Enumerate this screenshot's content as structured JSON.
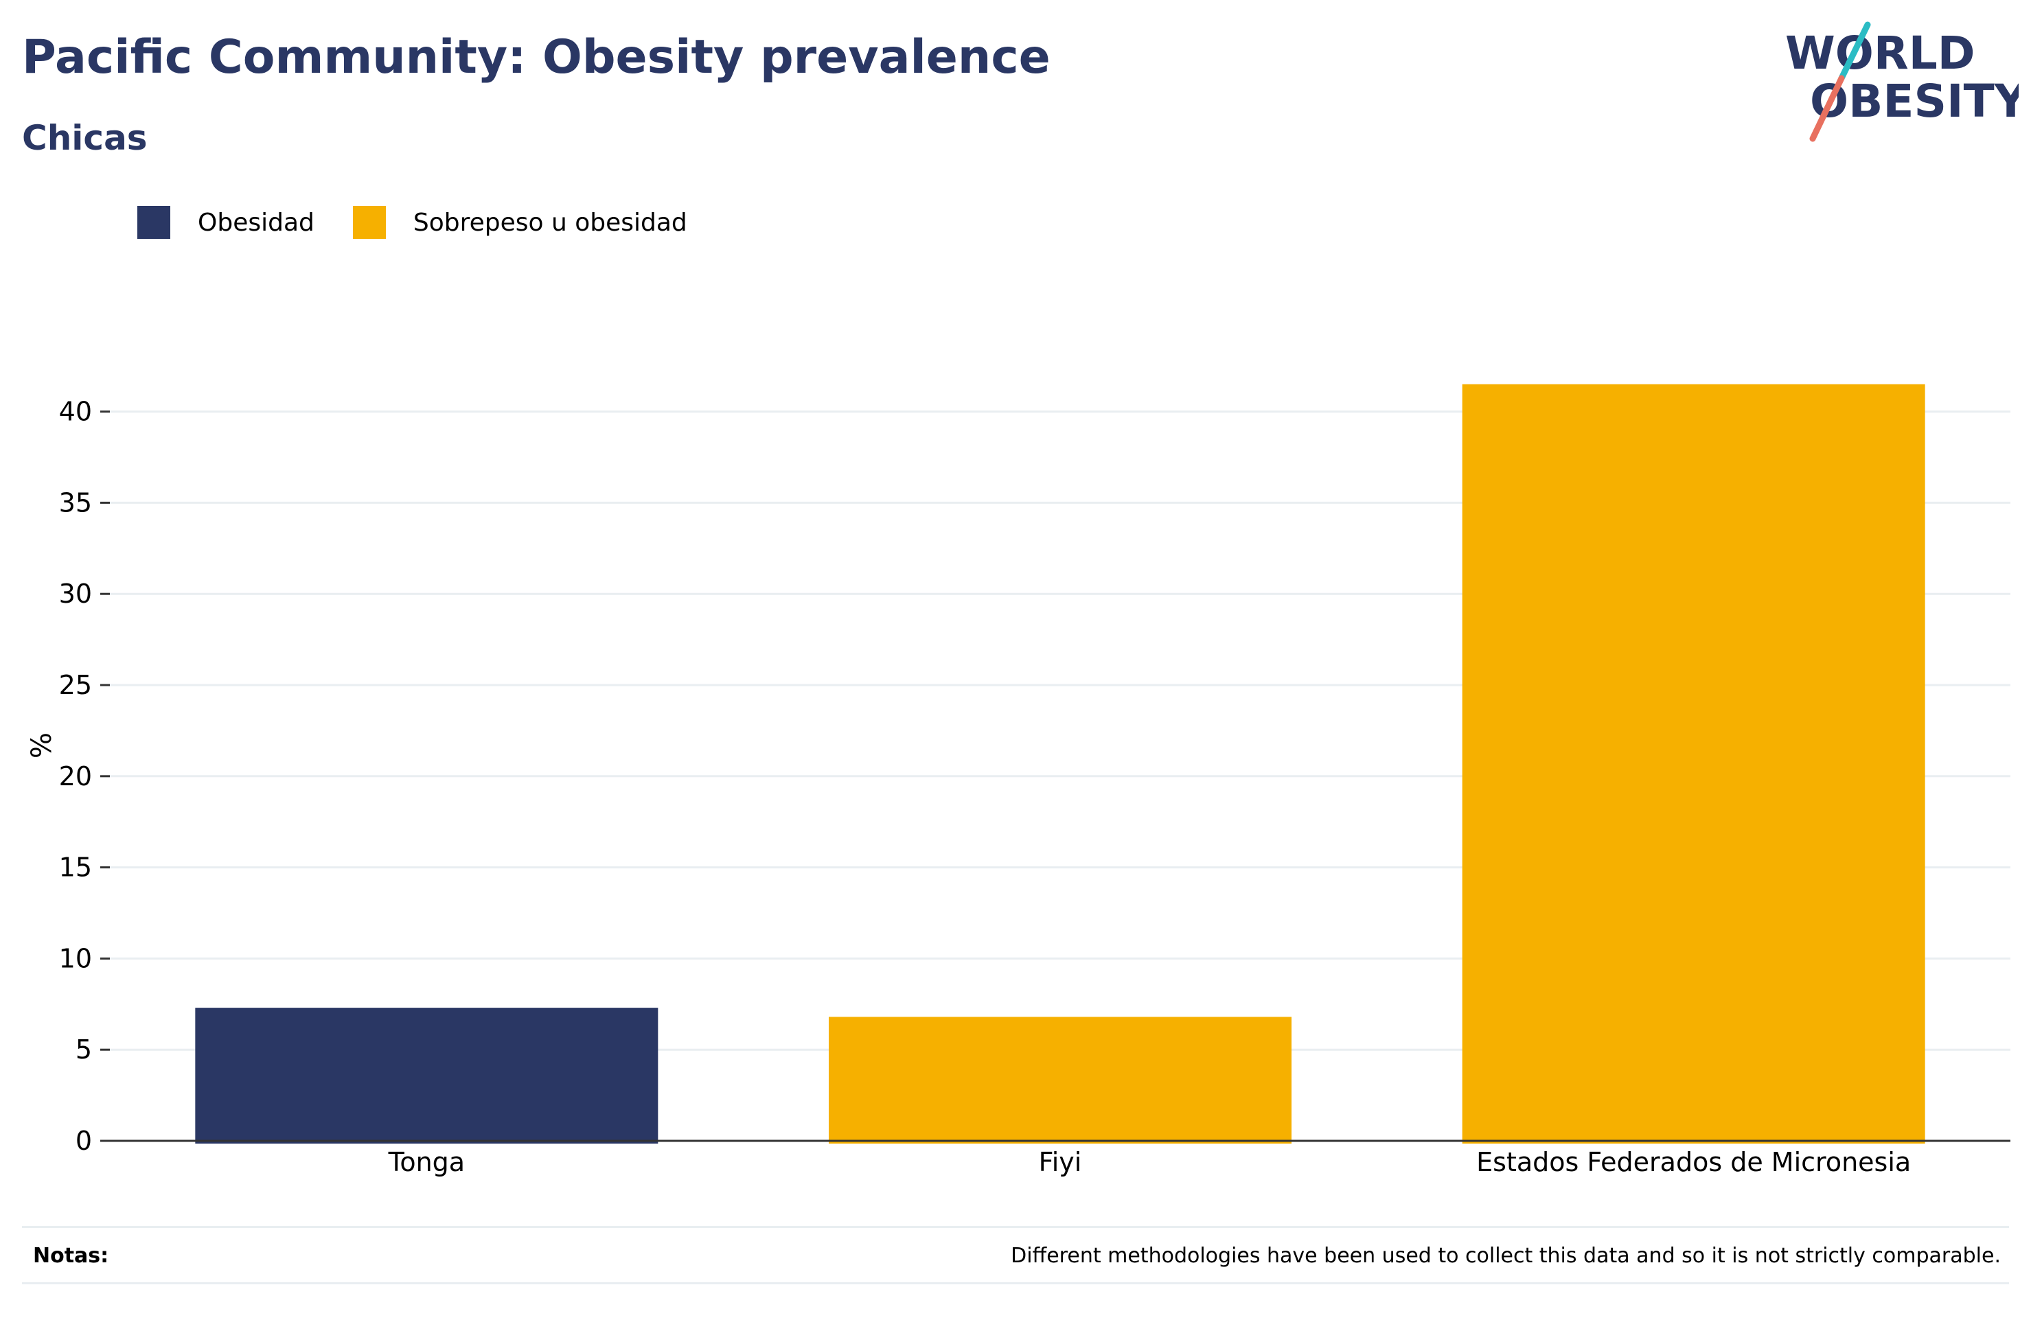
{
  "colors": {
    "obesidad": "#2a3764",
    "sobrepeso": "#f6b000",
    "title": "#2a3764",
    "logo_teal": "#2bbcc4",
    "logo_coral": "#e8705f",
    "grid": "#e9eef1",
    "axis": "#333333"
  },
  "logo": {
    "line1": "WORLD",
    "line2": "OBESITY"
  },
  "notes": {
    "label": "Notas:",
    "text": "Different methodologies have been used to collect this data and so it is not strictly comparable."
  },
  "chart_data": {
    "type": "bar",
    "title": "Pacific Community: Obesity prevalence",
    "subtitle": "Chicas",
    "ylabel": "%",
    "xlabel": "",
    "ylim": [
      0,
      43
    ],
    "yticks": [
      0,
      5,
      10,
      15,
      20,
      25,
      30,
      35,
      40
    ],
    "grid": true,
    "legend_position": "top-left",
    "legend": [
      {
        "name": "Obesidad",
        "color": "#2a3764"
      },
      {
        "name": "Sobrepeso u obesidad",
        "color": "#f6b000"
      }
    ],
    "categories": [
      "Tonga",
      "Fiyi",
      "Estados Federados de Micronesia"
    ],
    "bars": [
      {
        "category": "Tonga",
        "series": "Obesidad",
        "value": 7.3,
        "color": "#2a3764"
      },
      {
        "category": "Fiyi",
        "series": "Sobrepeso u obesidad",
        "value": 6.8,
        "color": "#f6b000"
      },
      {
        "category": "Estados Federados de Micronesia",
        "series": "Sobrepeso u obesidad",
        "value": 41.5,
        "color": "#f6b000"
      }
    ]
  }
}
